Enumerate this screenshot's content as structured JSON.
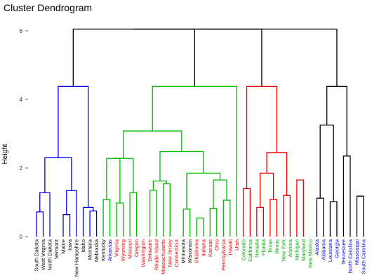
{
  "chart_data": {
    "type": "dendrogram",
    "title": "Cluster Dendrogram",
    "ylabel": "Height",
    "ylim": [
      0,
      6
    ],
    "yticks": [
      0,
      2,
      4,
      6
    ],
    "grid": false,
    "colors": {
      "blue_cluster": "#0000ee",
      "green_cluster": "#00bb00",
      "red_cluster": "#ee0000",
      "black_cluster": "#000000",
      "leaf_text_blue": "#0000ee",
      "leaf_text_red": "#ee0000",
      "leaf_text_green": "#00aa00",
      "leaf_text_black": "#000000"
    },
    "leaves": [
      {
        "label": "South Dakota",
        "text_color": "black"
      },
      {
        "label": "West Virginia",
        "text_color": "black"
      },
      {
        "label": "North Dakota",
        "text_color": "black"
      },
      {
        "label": "Vermont",
        "text_color": "black"
      },
      {
        "label": "Maine",
        "text_color": "black"
      },
      {
        "label": "Iowa",
        "text_color": "black"
      },
      {
        "label": "New Hampshire",
        "text_color": "black"
      },
      {
        "label": "Idaho",
        "text_color": "black"
      },
      {
        "label": "Montana",
        "text_color": "black"
      },
      {
        "label": "Nebraska",
        "text_color": "black"
      },
      {
        "label": "Kentucky",
        "text_color": "black"
      },
      {
        "label": "Arkansas",
        "text_color": "blue"
      },
      {
        "label": "Virginia",
        "text_color": "red"
      },
      {
        "label": "Wyoming",
        "text_color": "red"
      },
      {
        "label": "Missouri",
        "text_color": "red"
      },
      {
        "label": "Oregon",
        "text_color": "red"
      },
      {
        "label": "Washington",
        "text_color": "red"
      },
      {
        "label": "Delaware",
        "text_color": "red"
      },
      {
        "label": "Rhode Island",
        "text_color": "red"
      },
      {
        "label": "Massachusetts",
        "text_color": "red"
      },
      {
        "label": "New Jersey",
        "text_color": "red"
      },
      {
        "label": "Connecticut",
        "text_color": "red"
      },
      {
        "label": "Minnesota",
        "text_color": "black"
      },
      {
        "label": "Wisconsin",
        "text_color": "black"
      },
      {
        "label": "Oklahoma",
        "text_color": "red"
      },
      {
        "label": "Indiana",
        "text_color": "red"
      },
      {
        "label": "Kansas",
        "text_color": "red"
      },
      {
        "label": "Ohio",
        "text_color": "red"
      },
      {
        "label": "Pennsylvania",
        "text_color": "red"
      },
      {
        "label": "Hawaii",
        "text_color": "red"
      },
      {
        "label": "Utah",
        "text_color": "red"
      },
      {
        "label": "Colorado",
        "text_color": "green"
      },
      {
        "label": "California",
        "text_color": "green"
      },
      {
        "label": "Nevada",
        "text_color": "green"
      },
      {
        "label": "Florida",
        "text_color": "green"
      },
      {
        "label": "Texas",
        "text_color": "green"
      },
      {
        "label": "Illinois",
        "text_color": "green"
      },
      {
        "label": "New York",
        "text_color": "green"
      },
      {
        "label": "Arizona",
        "text_color": "green"
      },
      {
        "label": "Michigan",
        "text_color": "green"
      },
      {
        "label": "Maryland",
        "text_color": "green"
      },
      {
        "label": "New Mexico",
        "text_color": "green"
      },
      {
        "label": "Alaska",
        "text_color": "blue"
      },
      {
        "label": "Alabama",
        "text_color": "blue"
      },
      {
        "label": "Louisiana",
        "text_color": "blue"
      },
      {
        "label": "Georgia",
        "text_color": "blue"
      },
      {
        "label": "Tennessee",
        "text_color": "blue"
      },
      {
        "label": "North Carolina",
        "text_color": "blue"
      },
      {
        "label": "Mississippi",
        "text_color": "blue"
      },
      {
        "label": "South Carolina",
        "text_color": "blue"
      }
    ],
    "merges": [
      {
        "id": "b1",
        "a": 0,
        "b": 1,
        "h": 0.72,
        "color": "blue"
      },
      {
        "id": "b2",
        "a": "b1",
        "b": 2,
        "h": 1.28,
        "color": "blue"
      },
      {
        "id": "b3",
        "a": 4,
        "b": 5,
        "h": 0.64,
        "color": "blue"
      },
      {
        "id": "b4",
        "a": "b3",
        "b": 6,
        "h": 1.34,
        "color": "blue"
      },
      {
        "id": "b5",
        "a": "b2",
        "b": "b4",
        "h": 2.3,
        "color": "blue"
      },
      {
        "id": "b6",
        "a": 8,
        "b": 9,
        "h": 0.75,
        "color": "blue"
      },
      {
        "id": "b7",
        "a": 7,
        "b": "b6",
        "h": 0.85,
        "color": "blue"
      },
      {
        "id": "b8",
        "a": "b5",
        "b": "b7",
        "h": 4.38,
        "color": "blue"
      },
      {
        "id": "g1",
        "a": 10,
        "b": 11,
        "h": 1.08,
        "color": "green"
      },
      {
        "id": "g2",
        "a": 12,
        "b": 13,
        "h": 0.98,
        "color": "green"
      },
      {
        "id": "g3",
        "a": "g1",
        "b": "g2",
        "h": 2.28,
        "color": "green"
      },
      {
        "id": "g4",
        "a": 14,
        "b": 15,
        "h": 1.28,
        "color": "green"
      },
      {
        "id": "g5",
        "a": "g3",
        "b": "g4",
        "h": 2.28,
        "color": "green"
      },
      {
        "id": "g6",
        "a": 17,
        "b": 18,
        "h": 1.35,
        "color": "green"
      },
      {
        "id": "g7",
        "a": 19,
        "b": 20,
        "h": 1.54,
        "color": "green"
      },
      {
        "id": "g8",
        "a": "g6",
        "b": "g7",
        "h": 1.62,
        "color": "green"
      },
      {
        "id": "g9",
        "a": 22,
        "b": 23,
        "h": 0.8,
        "color": "green"
      },
      {
        "id": "g10",
        "a": 24,
        "b": 25,
        "h": 0.54,
        "color": "green"
      },
      {
        "id": "g11",
        "a": 26,
        "b": 27,
        "h": 0.82,
        "color": "green"
      },
      {
        "id": "g12",
        "a": 28,
        "b": 29,
        "h": 1.06,
        "color": "green"
      },
      {
        "id": "g13",
        "a": "g11",
        "b": "g12",
        "h": 1.65,
        "color": "green"
      },
      {
        "id": "g14",
        "a": "g9",
        "b": "g13",
        "h": 1.85,
        "color": "green"
      },
      {
        "id": "g15",
        "a": "g8",
        "b": "g14",
        "h": 2.48,
        "color": "green"
      },
      {
        "id": "g16",
        "a": "g5",
        "b": "g15",
        "h": 3.08,
        "color": "green"
      },
      {
        "id": "g17",
        "a": "g16",
        "b": 30,
        "h": 4.38,
        "color": "green"
      },
      {
        "id": "r1",
        "a": 31,
        "b": 32,
        "h": 1.4,
        "color": "red"
      },
      {
        "id": "r2",
        "a": 33,
        "b": 34,
        "h": 0.85,
        "color": "red"
      },
      {
        "id": "r3",
        "a": 35,
        "b": 36,
        "h": 1.08,
        "color": "red"
      },
      {
        "id": "r4",
        "a": 37,
        "b": 38,
        "h": 1.2,
        "color": "red"
      },
      {
        "id": "r5",
        "a": 39,
        "b": 40,
        "h": 1.65,
        "color": "red"
      },
      {
        "id": "r6",
        "a": "r2",
        "b": "r3",
        "h": 1.85,
        "color": "red"
      },
      {
        "id": "r7",
        "a": "r6",
        "b": "r4",
        "h": 2.45,
        "color": "red"
      },
      {
        "id": "r8",
        "a": "r1",
        "b": "r7",
        "h": 4.38,
        "color": "red"
      },
      {
        "id": "k1",
        "a": 42,
        "b": 43,
        "h": 1.12,
        "color": "black"
      },
      {
        "id": "k2",
        "a": 44,
        "b": 45,
        "h": 1.02,
        "color": "black"
      },
      {
        "id": "k3",
        "a": 46,
        "b": 47,
        "h": 2.35,
        "color": "black"
      },
      {
        "id": "k4",
        "a": 48,
        "b": 49,
        "h": 1.18,
        "color": "black"
      },
      {
        "id": "k5",
        "a": "k1",
        "b": "k2",
        "h": 3.25,
        "color": "black"
      },
      {
        "id": "k6",
        "a": "k5",
        "b": "k3",
        "h": 4.38,
        "color": "black"
      },
      {
        "id": "top1",
        "a": "b8",
        "b": "g17",
        "h": 6.05,
        "color": "black"
      },
      {
        "id": "top2",
        "a": "top1",
        "b": "r8",
        "h": 6.05,
        "color": "black"
      },
      {
        "id": "root",
        "a": "top2",
        "b": "k6",
        "h": 6.05,
        "color": "black"
      }
    ]
  }
}
